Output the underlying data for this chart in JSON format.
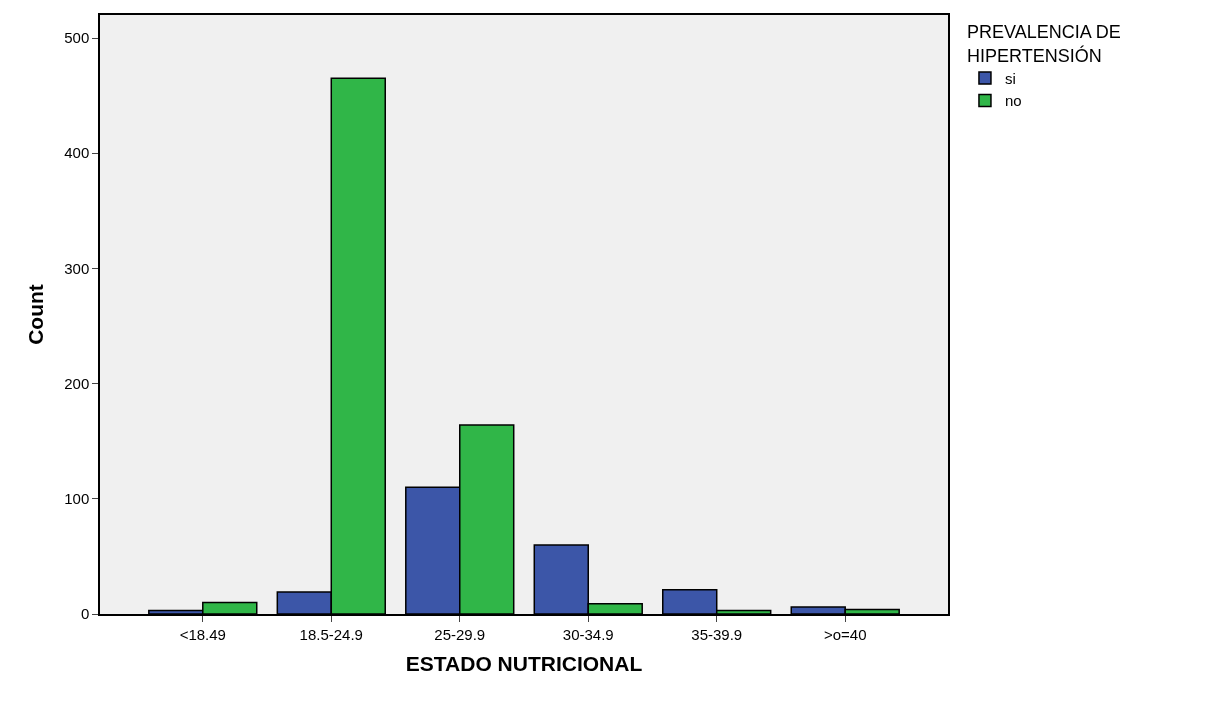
{
  "chart_data": {
    "type": "bar",
    "xlabel": "ESTADO NUTRICIONAL",
    "ylabel": "Count",
    "legend_title": "PREVALENCIA DE\nHIPERTENSIÓN",
    "categories": [
      "<18.49",
      "18.5-24.9",
      "25-29.9",
      "30-34.9",
      "35-39.9",
      ">o=40"
    ],
    "series": [
      {
        "name": "si",
        "color": "#3c56a8",
        "values": [
          3,
          19,
          110,
          60,
          21,
          6
        ]
      },
      {
        "name": "no",
        "color": "#30b648",
        "values": [
          10,
          465,
          164,
          9,
          3,
          4
        ]
      }
    ],
    "ylim": [
      0,
      520
    ],
    "yticks": [
      0,
      100,
      200,
      300,
      400,
      500
    ],
    "grid": false,
    "legend": "top right"
  }
}
